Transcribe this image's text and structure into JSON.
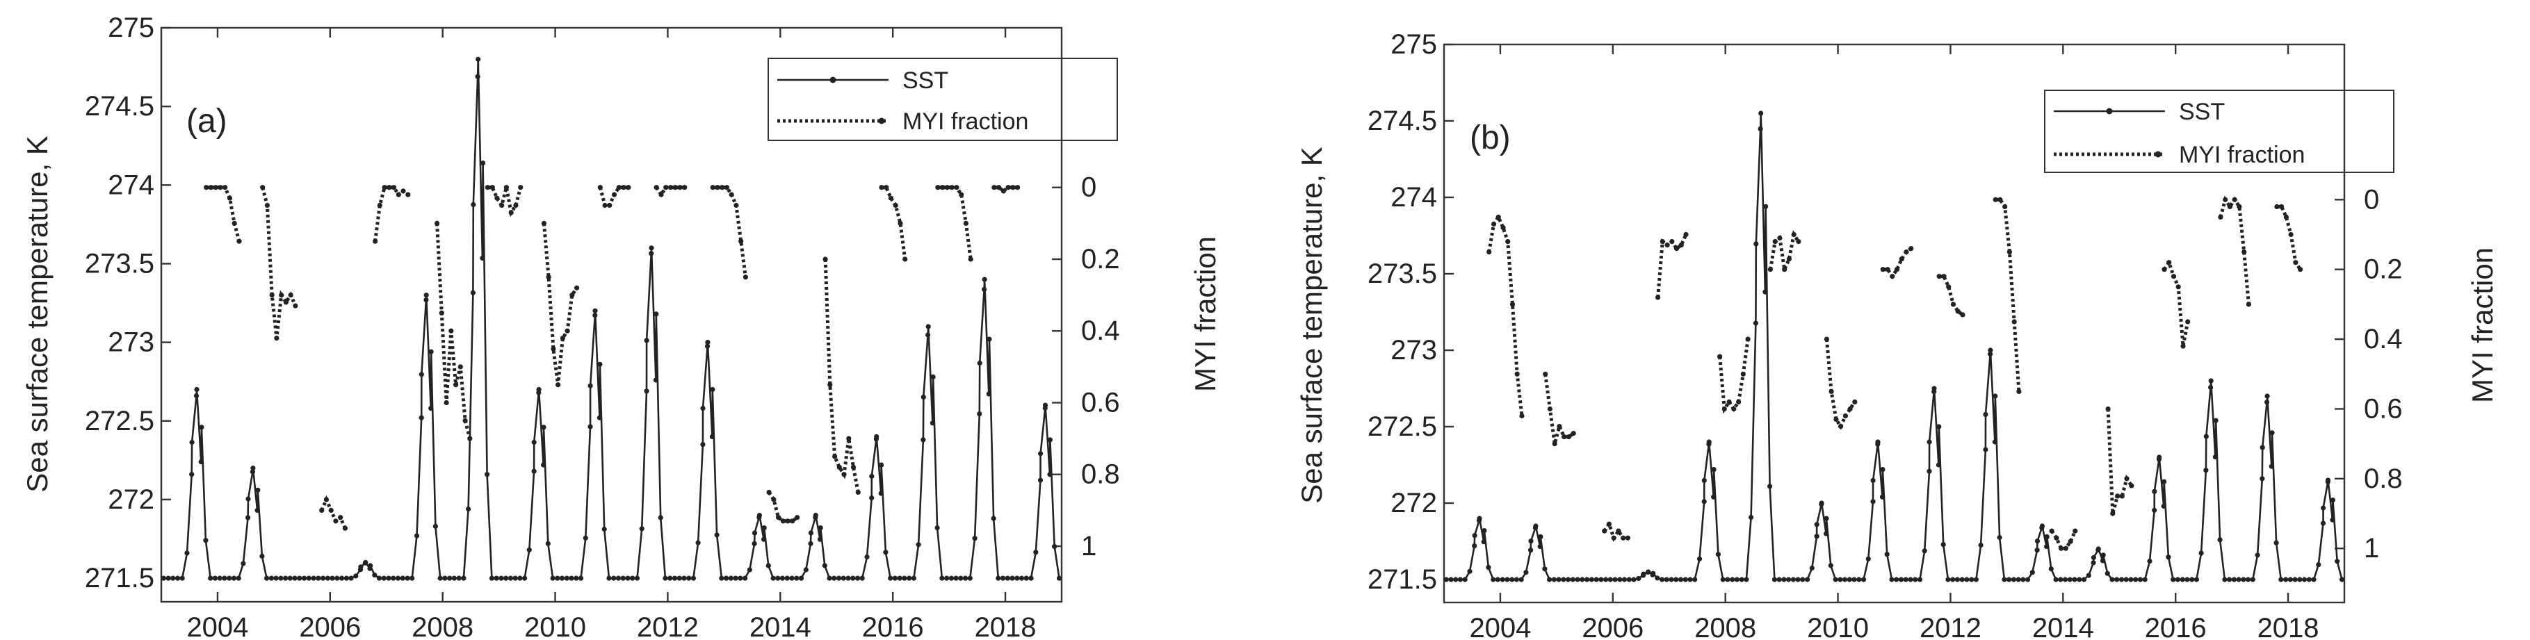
{
  "chart_data": [
    {
      "type": "line",
      "panel_label": "(a)",
      "ylabel": "Sea surface temperature, K",
      "y2label": "MYI fraction",
      "xlim": [
        2003,
        2019
      ],
      "ylim": [
        271.35,
        275
      ],
      "y2lim": [
        1.155,
        -0.445
      ],
      "xticks": [
        "2004",
        "2006",
        "2008",
        "2010",
        "2012",
        "2014",
        "2016",
        "2018"
      ],
      "yticks": [
        "271.5",
        "272",
        "272.5",
        "273",
        "273.5",
        "274",
        "274.5",
        "275"
      ],
      "y2ticks": [
        "0",
        "0.2",
        "0.4",
        "0.6",
        "0.8",
        "1"
      ],
      "legend": [
        "SST",
        "MYI fraction"
      ],
      "sst_peaks": [
        {
          "t": 2003.63,
          "v": 272.7
        },
        {
          "t": 2004.63,
          "v": 272.2
        },
        {
          "t": 2006.63,
          "v": 271.6
        },
        {
          "t": 2007.71,
          "v": 273.3
        },
        {
          "t": 2008.63,
          "v": 274.8
        },
        {
          "t": 2009.71,
          "v": 272.7
        },
        {
          "t": 2010.71,
          "v": 273.2
        },
        {
          "t": 2011.71,
          "v": 273.6
        },
        {
          "t": 2012.71,
          "v": 273.0
        },
        {
          "t": 2013.63,
          "v": 271.9
        },
        {
          "t": 2014.63,
          "v": 271.9
        },
        {
          "t": 2015.71,
          "v": 272.4
        },
        {
          "t": 2016.63,
          "v": 273.1
        },
        {
          "t": 2017.63,
          "v": 273.4
        },
        {
          "t": 2018.71,
          "v": 272.6
        }
      ],
      "myi_segments": [
        {
          "t0": 2003.8,
          "values": [
            0,
            0,
            0,
            0,
            0,
            0.03,
            0.1,
            0.15
          ]
        },
        {
          "t0": 2004.8,
          "values": [
            0,
            0.05,
            0.3,
            0.42,
            0.3,
            0.32,
            0.3,
            0.33
          ]
        },
        {
          "t0": 2005.85,
          "values": [
            0.9,
            0.87,
            0.9,
            0.93,
            0.92,
            0.95
          ]
        },
        {
          "t0": 2006.8,
          "values": [
            0.15,
            0.05,
            0,
            0,
            0,
            0.02,
            0.01,
            0.02
          ]
        },
        {
          "t0": 2007.9,
          "values": [
            0.1,
            0.35,
            0.6,
            0.4,
            0.55,
            0.5,
            0.65,
            0.7
          ]
        },
        {
          "t0": 2008.8,
          "values": [
            0,
            0,
            0.03,
            0.05,
            0,
            0.07,
            0.05,
            0
          ]
        },
        {
          "t0": 2009.8,
          "values": [
            0.1,
            0.25,
            0.45,
            0.55,
            0.42,
            0.4,
            0.3,
            0.28
          ]
        },
        {
          "t0": 2010.8,
          "values": [
            0,
            0.05,
            0.05,
            0.02,
            0,
            0,
            0
          ]
        },
        {
          "t0": 2011.8,
          "values": [
            0,
            0.02,
            0,
            0,
            0,
            0,
            0
          ]
        },
        {
          "t0": 2012.8,
          "values": [
            0,
            0,
            0,
            0,
            0.02,
            0.05,
            0.15,
            0.25
          ]
        },
        {
          "t0": 2013.8,
          "values": [
            0.85,
            0.87,
            0.92,
            0.93,
            0.93,
            0.93,
            0.92
          ]
        },
        {
          "t0": 2014.8,
          "values": [
            0.2,
            0.55,
            0.75,
            0.78,
            0.8,
            0.7,
            0.78,
            0.85
          ]
        },
        {
          "t0": 2015.8,
          "values": [
            0,
            0,
            0.03,
            0.05,
            0.1,
            0.2
          ]
        },
        {
          "t0": 2016.8,
          "values": [
            0,
            0,
            0,
            0,
            0,
            0.02,
            0.1,
            0.2
          ]
        },
        {
          "t0": 2017.8,
          "values": [
            0,
            0,
            0.01,
            0,
            0,
            0
          ]
        }
      ]
    },
    {
      "type": "line",
      "panel_label": "(b)",
      "ylabel": "Sea surface temperature, K",
      "y2label": "MYI fraction",
      "xlim": [
        2003,
        2019
      ],
      "ylim": [
        271.35,
        275
      ],
      "y2lim": [
        1.155,
        -0.445
      ],
      "xticks": [
        "2004",
        "2006",
        "2008",
        "2010",
        "2012",
        "2014",
        "2016",
        "2018"
      ],
      "yticks": [
        "271.5",
        "272",
        "272.5",
        "273",
        "273.5",
        "274",
        "274.5",
        "275"
      ],
      "y2ticks": [
        "0",
        "0.2",
        "0.4",
        "0.6",
        "0.8",
        "1"
      ],
      "legend": [
        "SST",
        "MYI fraction"
      ],
      "sst_peaks": [
        {
          "t": 2003.63,
          "v": 271.9
        },
        {
          "t": 2004.63,
          "v": 271.85
        },
        {
          "t": 2006.63,
          "v": 271.55
        },
        {
          "t": 2007.71,
          "v": 272.4
        },
        {
          "t": 2008.63,
          "v": 274.55
        },
        {
          "t": 2009.71,
          "v": 272.0
        },
        {
          "t": 2010.71,
          "v": 272.4
        },
        {
          "t": 2011.71,
          "v": 272.75
        },
        {
          "t": 2012.71,
          "v": 273.0
        },
        {
          "t": 2013.63,
          "v": 271.85
        },
        {
          "t": 2014.63,
          "v": 271.7
        },
        {
          "t": 2015.71,
          "v": 272.3
        },
        {
          "t": 2016.63,
          "v": 272.8
        },
        {
          "t": 2017.63,
          "v": 272.7
        },
        {
          "t": 2018.71,
          "v": 272.15
        }
      ],
      "myi_segments": [
        {
          "t0": 2003.8,
          "values": [
            0.15,
            0.07,
            0.05,
            0.08,
            0.12,
            0.3,
            0.5,
            0.62
          ]
        },
        {
          "t0": 2004.8,
          "values": [
            0.5,
            0.6,
            0.7,
            0.65,
            0.68,
            0.68,
            0.67
          ]
        },
        {
          "t0": 2005.85,
          "values": [
            0.95,
            0.93,
            0.97,
            0.95,
            0.97,
            0.97
          ]
        },
        {
          "t0": 2006.8,
          "values": [
            0.28,
            0.12,
            0.13,
            0.12,
            0.14,
            0.13,
            0.1
          ]
        },
        {
          "t0": 2007.9,
          "values": [
            0.45,
            0.6,
            0.58,
            0.6,
            0.58,
            0.5,
            0.4
          ]
        },
        {
          "t0": 2008.8,
          "values": [
            0.2,
            0.12,
            0.11,
            0.2,
            0.17,
            0.1,
            0.12
          ]
        },
        {
          "t0": 2009.8,
          "values": [
            0.4,
            0.55,
            0.63,
            0.65,
            0.62,
            0.6,
            0.58
          ]
        },
        {
          "t0": 2010.8,
          "values": [
            0.2,
            0.2,
            0.22,
            0.2,
            0.17,
            0.15,
            0.14
          ]
        },
        {
          "t0": 2011.8,
          "values": [
            0.22,
            0.22,
            0.25,
            0.3,
            0.32,
            0.33
          ]
        },
        {
          "t0": 2012.8,
          "values": [
            0,
            0,
            0.02,
            0.15,
            0.35,
            0.55
          ]
        },
        {
          "t0": 2013.8,
          "values": [
            0.95,
            0.97,
            1.0,
            1.0,
            0.98,
            0.95
          ]
        },
        {
          "t0": 2014.8,
          "values": [
            0.6,
            0.9,
            0.85,
            0.85,
            0.8,
            0.82
          ]
        },
        {
          "t0": 2015.8,
          "values": [
            0.2,
            0.18,
            0.22,
            0.25,
            0.42,
            0.35
          ]
        },
        {
          "t0": 2016.8,
          "values": [
            0.05,
            0,
            0.02,
            0,
            0.02,
            0.15,
            0.3
          ]
        },
        {
          "t0": 2017.8,
          "values": [
            0.02,
            0.02,
            0.05,
            0.1,
            0.18,
            0.2
          ]
        }
      ]
    }
  ]
}
